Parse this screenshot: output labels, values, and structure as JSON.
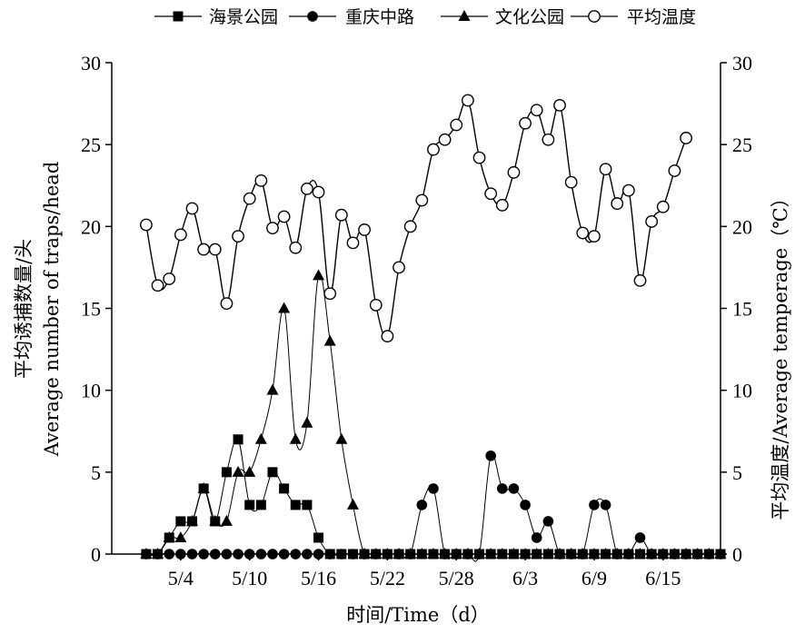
{
  "chart_data": {
    "type": "line",
    "x_start_label": "5/1",
    "x_axis": {
      "ticks": [
        "5/4",
        "5/10",
        "5/16",
        "5/22",
        "5/28",
        "6/3",
        "6/9",
        "6/15"
      ],
      "range": [
        "4/28",
        "6/20"
      ]
    },
    "y_left": {
      "label_lines": [
        "平均诱捕数量/头",
        "Average number of traps/head"
      ],
      "range": [
        0,
        30
      ],
      "ticks": [
        "0",
        "5",
        "10",
        "15",
        "20",
        "25",
        "30"
      ]
    },
    "y_right": {
      "label": "平均温度/Average temperage（℃）",
      "range": [
        0,
        30
      ],
      "ticks": [
        "0",
        "5",
        "10",
        "15",
        "20",
        "25",
        "30"
      ]
    },
    "xlabel": "时间/Time（d）",
    "legend_position": "top",
    "series": [
      {
        "name": "海景公园",
        "marker": "square",
        "axis": "left",
        "start_date": "5/1",
        "values": [
          0,
          0,
          1,
          2,
          2,
          4,
          2,
          5,
          7,
          3,
          3,
          5,
          4,
          3,
          3,
          1,
          0,
          0,
          0,
          0,
          0,
          0,
          0,
          0,
          0,
          0,
          0,
          0,
          0,
          0,
          0,
          0,
          0,
          0,
          0,
          0,
          0,
          0,
          0,
          0,
          0,
          0,
          0,
          0,
          0,
          0,
          0,
          0,
          0,
          0,
          0
        ]
      },
      {
        "name": "重庆中路",
        "marker": "circle-filled",
        "axis": "left",
        "start_date": "5/1",
        "values": [
          0,
          0,
          0,
          0,
          0,
          0,
          0,
          0,
          0,
          0,
          0,
          0,
          0,
          0,
          0,
          0,
          0,
          0,
          0,
          0,
          0,
          0,
          0,
          0,
          3,
          4,
          0,
          0,
          0,
          0,
          6,
          4,
          4,
          3,
          1,
          2,
          0,
          0,
          0,
          3,
          3,
          0,
          0,
          1,
          0,
          0,
          0,
          0,
          0,
          0,
          0
        ]
      },
      {
        "name": "文化公园",
        "marker": "triangle",
        "axis": "left",
        "start_date": "5/1",
        "values": [
          0,
          0,
          1,
          1,
          2,
          4,
          2,
          2,
          5,
          5,
          7,
          10,
          15,
          7,
          8,
          17,
          13,
          7,
          3,
          0,
          0,
          0,
          0,
          0,
          0,
          0,
          0,
          0,
          0,
          0,
          0,
          0,
          0,
          0,
          0,
          0,
          0,
          0,
          0,
          0,
          0,
          0,
          0,
          0,
          0,
          0,
          0,
          0,
          0,
          0,
          0
        ]
      },
      {
        "name": "平均温度",
        "marker": "circle-open",
        "axis": "right",
        "start_date": "5/1",
        "values": [
          20.1,
          16.4,
          16.8,
          19.5,
          21.1,
          18.6,
          18.6,
          15.3,
          19.4,
          21.7,
          22.8,
          19.9,
          20.6,
          18.7,
          22.3,
          22.1,
          15.9,
          20.7,
          19.0,
          19.8,
          15.2,
          13.3,
          17.5,
          20.0,
          21.6,
          24.7,
          25.3,
          26.2,
          27.7,
          24.2,
          22.0,
          21.3,
          23.3,
          26.3,
          27.1,
          25.3,
          27.4,
          22.7,
          19.6,
          19.4,
          23.5,
          21.4,
          22.2,
          16.7,
          20.3,
          21.2,
          23.4,
          25.4
        ]
      }
    ]
  }
}
